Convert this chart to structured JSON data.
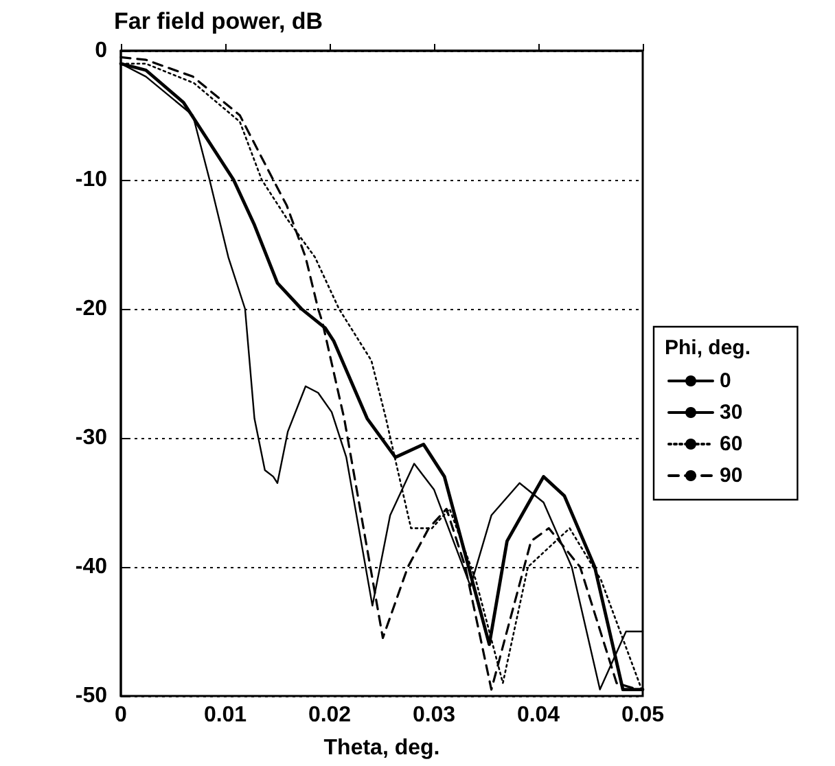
{
  "chart_data": {
    "type": "line",
    "title": "Far field power, dB",
    "xlabel": "Theta, deg.",
    "legend_title": "Phi, deg.",
    "legend": "right",
    "grid": "y",
    "marker": "none",
    "xlim": [
      0,
      0.05
    ],
    "ylim": [
      -50,
      0
    ],
    "xticks": [
      0,
      0.01,
      0.02,
      0.03,
      0.04,
      0.05
    ],
    "yticks": [
      0,
      -10,
      -20,
      -30,
      -40,
      -50
    ],
    "series": [
      {
        "name": "0",
        "color": "#000000",
        "line_style": "solid",
        "x": [
          0,
          0.0024,
          0.0069,
          0.0085,
          0.0103,
          0.0119,
          0.0128,
          0.0138,
          0.0146,
          0.015,
          0.016,
          0.0177,
          0.0189,
          0.0202,
          0.0216,
          0.0241,
          0.0258,
          0.0281,
          0.03,
          0.0335,
          0.0355,
          0.0382,
          0.0405,
          0.0432,
          0.0459,
          0.0484,
          0.05
        ],
        "values": [
          -1,
          -2,
          -5,
          -10,
          -16,
          -20,
          -28.5,
          -32.5,
          -33,
          -33.5,
          -29.5,
          -26,
          -26.5,
          -28,
          -31.5,
          -43,
          -36,
          -32,
          -34,
          -41.5,
          -36,
          -33.5,
          -35,
          -40,
          -49.5,
          -45,
          -45
        ]
      },
      {
        "name": "30",
        "color": "#000000",
        "line_style": "solid",
        "x": [
          0,
          0.0024,
          0.006,
          0.0108,
          0.0128,
          0.015,
          0.0173,
          0.0196,
          0.0204,
          0.0236,
          0.0263,
          0.029,
          0.031,
          0.0353,
          0.037,
          0.0405,
          0.0425,
          0.0454,
          0.0481,
          0.05
        ],
        "values": [
          -1,
          -1.5,
          -4,
          -10,
          -13.5,
          -18,
          -20,
          -21.5,
          -22.5,
          -28.5,
          -31.5,
          -30.5,
          -33,
          -46,
          -38,
          -33,
          -34.5,
          -40,
          -49.5,
          -49.5
        ]
      },
      {
        "name": "60",
        "color": "#000000",
        "line_style": "dotted",
        "x": [
          0,
          0.0024,
          0.007,
          0.0114,
          0.0135,
          0.0159,
          0.0186,
          0.0209,
          0.024,
          0.0254,
          0.0261,
          0.0278,
          0.0298,
          0.0315,
          0.034,
          0.0366,
          0.039,
          0.043,
          0.046,
          0.0499
        ],
        "values": [
          -1,
          -1,
          -2.5,
          -5.5,
          -10,
          -13,
          -16,
          -20,
          -24,
          -28.5,
          -31,
          -37,
          -37,
          -35.5,
          -41,
          -49,
          -40,
          -37,
          -41,
          -49.5
        ]
      },
      {
        "name": "90",
        "color": "#000000",
        "line_style": "dashed",
        "x": [
          0,
          0.0024,
          0.0069,
          0.0114,
          0.0146,
          0.0159,
          0.0177,
          0.0189,
          0.0193,
          0.0214,
          0.0251,
          0.0275,
          0.0295,
          0.0312,
          0.033,
          0.0355,
          0.0393,
          0.041,
          0.044,
          0.0475,
          0.0495
        ],
        "values": [
          -0.5,
          -0.7,
          -2,
          -5,
          -10,
          -12,
          -16,
          -20,
          -21,
          -28.5,
          -45.5,
          -40,
          -37,
          -35.5,
          -40,
          -49.5,
          -38,
          -37,
          -40,
          -49,
          -49.5
        ]
      }
    ]
  }
}
